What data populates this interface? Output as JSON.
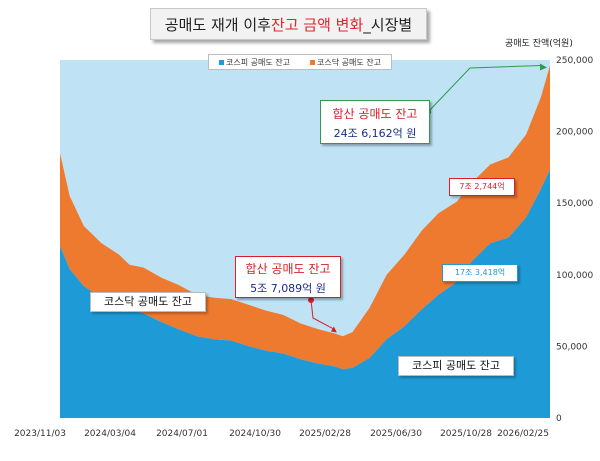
{
  "title": {
    "prefix": "공매도 재개 이후 ",
    "highlight": "잔고 금액 변화",
    "suffix": "_시장별"
  },
  "legend": {
    "items": [
      {
        "label": "코스피 공매도 잔고",
        "color": "#1e9bd6"
      },
      {
        "label": "코스닥 공매도 잔고",
        "color": "#ee7a30"
      }
    ]
  },
  "annotations": {
    "total_start": {
      "line1": "합산 공매도 잔고",
      "line2": "5조 7,089억 원"
    },
    "total_end": {
      "line1": "합산 공매도 잔고",
      "line2": "24조 6,162억 원"
    },
    "kosdaq_end": {
      "text": "7조 2,744억"
    },
    "kospi_end": {
      "text": "17조 3,418억"
    },
    "kosdaq_area": {
      "text": "코스닥 공매도 잔고"
    },
    "kospi_area": {
      "text": "코스피 공매도 잔고"
    }
  },
  "chart_data": {
    "type": "area",
    "stacked": true,
    "title": "공매도 재개 이후 잔고 금액 변화_시장별",
    "ylabel": "공매도 잔액(억원)",
    "xlabel": "",
    "ylim": [
      0,
      250000
    ],
    "y_ticks": [
      0,
      50000,
      100000,
      150000,
      200000,
      250000
    ],
    "y_tick_labels": [
      "0",
      "50,000",
      "100,000",
      "150,000",
      "200,000",
      "250,000"
    ],
    "x_tick_labels": [
      "2023/11/03",
      "2024/03/04",
      "2024/07/01",
      "2024/10/30",
      "2025/02/28",
      "2025/06/30",
      "2025/10/28",
      "2026/02/25"
    ],
    "legend_position": "top-center",
    "grid": false,
    "x": [
      "2023/11/03",
      "2023/11/20",
      "2023/12/15",
      "2024/01/15",
      "2024/02/15",
      "2024/03/04",
      "2024/03/29",
      "2024/04/29",
      "2024/05/29",
      "2024/07/01",
      "2024/07/31",
      "2024/08/30",
      "2024/09/30",
      "2024/10/30",
      "2024/11/29",
      "2024/12/30",
      "2025/01/30",
      "2025/02/28",
      "2025/03/14",
      "2025/03/31",
      "2025/04/30",
      "2025/05/30",
      "2025/06/30",
      "2025/07/31",
      "2025/08/29",
      "2025/09/30",
      "2025/10/28",
      "2025/11/28",
      "2025/12/30",
      "2026/01/30",
      "2026/02/25",
      "2026/03/13"
    ],
    "series": [
      {
        "name": "코스피 공매도 잔고",
        "color": "#1e9bd6",
        "values": [
          120000,
          104000,
          92000,
          84000,
          80000,
          76000,
          73000,
          67000,
          62000,
          57000,
          55000,
          54000,
          50000,
          47000,
          45000,
          41000,
          38000,
          36000,
          34000,
          35000,
          42000,
          55000,
          64000,
          76000,
          86000,
          95000,
          110000,
          122000,
          126000,
          140000,
          160000,
          173418
        ]
      },
      {
        "name": "코스닥 공매도 잔고",
        "color": "#ee7a30",
        "values": [
          65000,
          51000,
          42000,
          38000,
          34000,
          31000,
          32000,
          31000,
          31000,
          29000,
          29000,
          29000,
          29000,
          28000,
          27000,
          25000,
          24000,
          23000,
          23089,
          25000,
          35000,
          45000,
          50000,
          55000,
          57000,
          56000,
          55000,
          55000,
          56000,
          58000,
          64000,
          72744
        ]
      }
    ]
  }
}
